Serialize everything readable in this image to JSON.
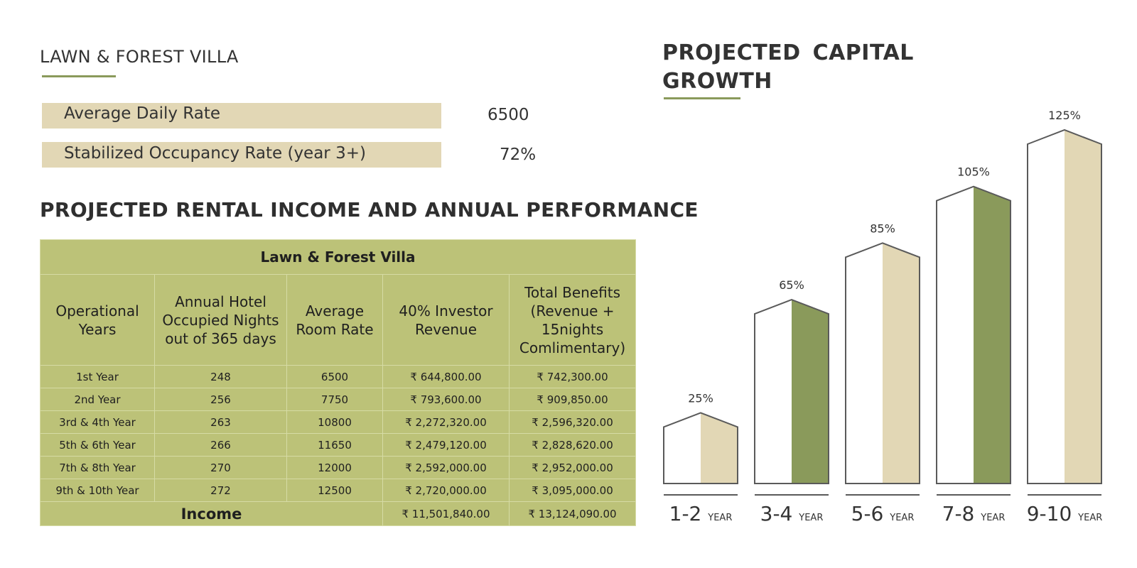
{
  "villa": {
    "title": "LAWN & FOREST VILLA",
    "rates": [
      {
        "label": "Average Daily Rate",
        "value": "6500"
      },
      {
        "label": "Stabilized Occupancy Rate (year 3+)",
        "value": "72%"
      }
    ]
  },
  "section_title": "PROJECTED RENTAL INCOME AND ANNUAL PERFORMANCE",
  "table": {
    "title": "Lawn & Forest Villa",
    "headers": [
      "Operational Years",
      "Annual Hotel Occupied Nights out of 365 days",
      "Average Room Rate",
      "40% Investor Revenue",
      "Total Benefits (Revenue + 15nights Comlimentary)"
    ],
    "rows": [
      [
        "1st Year",
        "248",
        "6500",
        "₹ 644,800.00",
        "₹ 742,300.00"
      ],
      [
        "2nd Year",
        "256",
        "7750",
        "₹ 793,600.00",
        "₹ 909,850.00"
      ],
      [
        "3rd & 4th Year",
        "263",
        "10800",
        "₹ 2,272,320.00",
        "₹ 2,596,320.00"
      ],
      [
        "5th & 6th Year",
        "266",
        "11650",
        "₹ 2,479,120.00",
        "₹ 2,828,620.00"
      ],
      [
        "7th & 8th Year",
        "270",
        "12000",
        "₹ 2,592,000.00",
        "₹ 2,952,000.00"
      ],
      [
        "9th & 10th Year",
        "272",
        "12500",
        "₹ 2,720,000.00",
        "₹ 3,095,000.00"
      ]
    ],
    "income": {
      "label": "Income",
      "revenue": "₹ 11,501,840.00",
      "benefits": "₹ 13,124,090.00"
    }
  },
  "chart_title": "PROJECTED CAPITAL GROWTH",
  "chart_data": {
    "type": "bar",
    "title": "PROJECTED CAPITAL GROWTH",
    "categories": [
      "1-2",
      "3-4",
      "5-6",
      "7-8",
      "9-10"
    ],
    "category_suffix": "YEAR",
    "values": [
      25,
      65,
      85,
      105,
      125
    ],
    "value_labels": [
      "25%",
      "65%",
      "85%",
      "105%",
      "125%"
    ],
    "accent_colors": [
      "#e2d7b5",
      "#8a9a5b",
      "#e2d7b5",
      "#8a9a5b",
      "#e2d7b5"
    ],
    "ylim": [
      0,
      125
    ]
  },
  "colors": {
    "accent_green": "#8a9a5b",
    "sand": "#e2d7b5",
    "table_green": "#bcc278"
  }
}
